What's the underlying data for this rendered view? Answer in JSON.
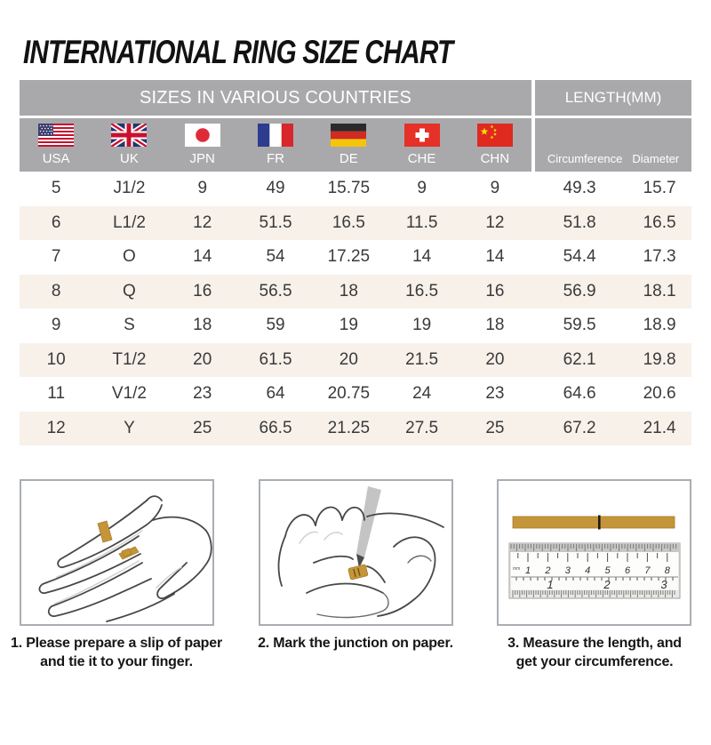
{
  "title": "INTERNATIONAL RING SIZE CHART",
  "chart_data": {
    "type": "table",
    "title": "INTERNATIONAL RING SIZE CHART",
    "group_headers": [
      "SIZES IN VARIOUS COUNTRIES",
      "LENGTH(MM)"
    ],
    "columns": [
      "USA",
      "UK",
      "JPN",
      "FR",
      "DE",
      "CHE",
      "CHN",
      "Circumference",
      "Diameter"
    ],
    "rows": [
      [
        "5",
        "J1/2",
        "9",
        "49",
        "15.75",
        "9",
        "9",
        "49.3",
        "15.7"
      ],
      [
        "6",
        "L1/2",
        "12",
        "51.5",
        "16.5",
        "11.5",
        "12",
        "51.8",
        "16.5"
      ],
      [
        "7",
        "O",
        "14",
        "54",
        "17.25",
        "14",
        "14",
        "54.4",
        "17.3"
      ],
      [
        "8",
        "Q",
        "16",
        "56.5",
        "18",
        "16.5",
        "16",
        "56.9",
        "18.1"
      ],
      [
        "9",
        "S",
        "18",
        "59",
        "19",
        "19",
        "18",
        "59.5",
        "18.9"
      ],
      [
        "10",
        "T1/2",
        "20",
        "61.5",
        "20",
        "21.5",
        "20",
        "62.1",
        "19.8"
      ],
      [
        "11",
        "V1/2",
        "23",
        "64",
        "20.75",
        "24",
        "23",
        "64.6",
        "20.6"
      ],
      [
        "12",
        "Y",
        "25",
        "66.5",
        "21.25",
        "27.5",
        "25",
        "67.2",
        "21.4"
      ]
    ]
  },
  "flags": [
    {
      "label": "USA",
      "icon": "usa-flag-icon"
    },
    {
      "label": "UK",
      "icon": "uk-flag-icon"
    },
    {
      "label": "JPN",
      "icon": "japan-flag-icon"
    },
    {
      "label": "FR",
      "icon": "france-flag-icon"
    },
    {
      "label": "DE",
      "icon": "germany-flag-icon"
    },
    {
      "label": "CHE",
      "icon": "switzerland-flag-icon"
    },
    {
      "label": "CHN",
      "icon": "china-flag-icon"
    }
  ],
  "steps": [
    {
      "caption": [
        "1. Please prepare a slip of paper",
        "and tie it to your finger."
      ]
    },
    {
      "caption": [
        "2. Mark the junction on paper."
      ]
    },
    {
      "caption": [
        "3. Measure the length, and",
        "get your circumference."
      ]
    }
  ],
  "ruler": {
    "cm_numbers": [
      "1",
      "2",
      "3",
      "4",
      "5",
      "6",
      "7",
      "8"
    ],
    "inch_numbers": [
      "1",
      "2",
      "3"
    ],
    "unit_label": "mm"
  },
  "colors": {
    "header_bg": "#a9a9ab",
    "header_text": "#ffffff",
    "row_alt_bg": "#f7f1ea",
    "cell_text": "#3a3a3a",
    "paper_strip_gold": "#c5953a",
    "step_box_border": "#a9aeb4"
  }
}
